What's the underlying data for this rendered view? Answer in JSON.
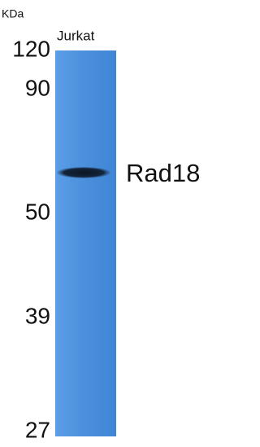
{
  "unit": "KDa",
  "lane": "Jurkat",
  "markers": [
    120,
    90,
    50,
    39,
    27
  ],
  "band": {
    "label": "Rad18"
  }
}
